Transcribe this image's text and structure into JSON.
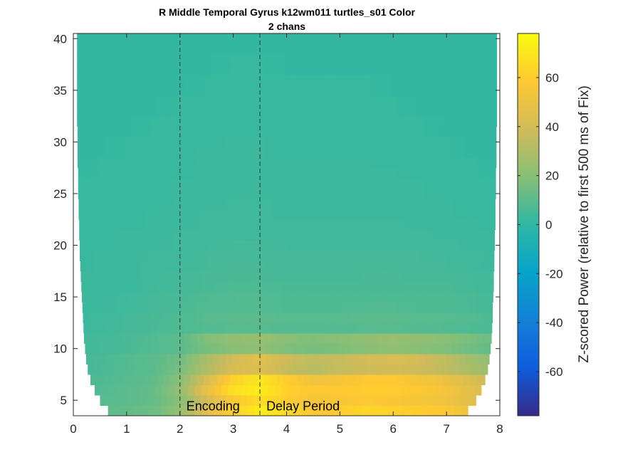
{
  "chart_data": {
    "type": "heatmap",
    "title": "R Middle Temporal Gyrus k12wm011 turtles_s01 Color",
    "subtitle": "2 chans",
    "xlabel": "",
    "ylabel": "",
    "xlim": [
      0,
      8
    ],
    "ylim": [
      3.5,
      40.5
    ],
    "x_ticks": [
      "0",
      "1",
      "2",
      "3",
      "4",
      "5",
      "6",
      "7",
      "8"
    ],
    "y_ticks": [
      "5",
      "10",
      "15",
      "20",
      "25",
      "30",
      "35",
      "40"
    ],
    "grid": false,
    "event_lines": [
      {
        "x": 2.0,
        "label": "Encoding"
      },
      {
        "x": 3.5,
        "label": "Delay Period"
      }
    ],
    "colorbar": {
      "label": "Z-scored Power (relative to first 500 ms of Fix)",
      "range": [
        -78,
        78
      ],
      "ticks": [
        "-60",
        "-40",
        "-20",
        "0",
        "20",
        "40",
        "60"
      ],
      "colormap": "parula"
    },
    "frequencies": [
      4,
      5,
      6,
      7,
      8,
      9,
      10,
      11,
      12,
      13,
      14,
      15,
      16,
      17,
      18,
      19,
      20,
      21,
      22,
      23,
      24,
      25,
      26,
      27,
      28,
      29,
      30,
      31,
      32,
      33,
      34,
      35,
      36,
      37,
      38,
      39,
      40
    ],
    "valid_time_ranges": [
      [
        0.65,
        7.4
      ],
      [
        0.5,
        7.55
      ],
      [
        0.4,
        7.65
      ],
      [
        0.32,
        7.72
      ],
      [
        0.27,
        7.77
      ],
      [
        0.24,
        7.8
      ],
      [
        0.22,
        7.82
      ],
      [
        0.2,
        7.84
      ],
      [
        0.19,
        7.85
      ],
      [
        0.18,
        7.86
      ],
      [
        0.17,
        7.86
      ],
      [
        0.16,
        7.87
      ],
      [
        0.15,
        7.88
      ],
      [
        0.14,
        7.88
      ],
      [
        0.13,
        7.89
      ],
      [
        0.12,
        7.89
      ],
      [
        0.12,
        7.9
      ],
      [
        0.11,
        7.9
      ],
      [
        0.11,
        7.91
      ],
      [
        0.1,
        7.91
      ],
      [
        0.1,
        7.91
      ],
      [
        0.09,
        7.92
      ],
      [
        0.09,
        7.92
      ],
      [
        0.09,
        7.92
      ],
      [
        0.08,
        7.93
      ],
      [
        0.08,
        7.93
      ],
      [
        0.08,
        7.93
      ],
      [
        0.08,
        7.93
      ],
      [
        0.07,
        7.94
      ],
      [
        0.07,
        7.94
      ],
      [
        0.07,
        7.94
      ],
      [
        0.07,
        7.94
      ],
      [
        0.07,
        7.94
      ],
      [
        0.07,
        7.94
      ],
      [
        0.07,
        7.94
      ],
      [
        0.07,
        7.94
      ],
      [
        0.07,
        7.94
      ]
    ],
    "time_points": [
      0,
      0.5,
      1,
      1.5,
      2,
      2.5,
      3,
      3.5,
      4,
      4.5,
      5,
      5.5,
      6,
      6.5,
      7,
      7.5,
      8
    ],
    "values": [
      [
        8,
        10,
        12,
        14,
        22,
        45,
        62,
        72,
        66,
        58,
        60,
        64,
        62,
        60,
        58,
        50,
        40
      ],
      [
        8,
        9,
        10,
        12,
        20,
        40,
        58,
        66,
        60,
        55,
        56,
        58,
        56,
        55,
        52,
        45,
        38
      ],
      [
        7,
        8,
        10,
        12,
        22,
        48,
        68,
        72,
        62,
        58,
        58,
        60,
        60,
        58,
        54,
        46,
        38
      ],
      [
        6,
        7,
        9,
        11,
        20,
        42,
        62,
        70,
        60,
        52,
        55,
        58,
        58,
        54,
        50,
        42,
        34
      ],
      [
        5,
        6,
        8,
        10,
        16,
        30,
        42,
        44,
        36,
        32,
        36,
        38,
        40,
        38,
        34,
        28,
        22
      ],
      [
        5,
        6,
        8,
        10,
        14,
        28,
        40,
        46,
        38,
        34,
        36,
        40,
        42,
        40,
        34,
        26,
        20
      ],
      [
        4,
        5,
        6,
        8,
        10,
        16,
        20,
        22,
        18,
        16,
        18,
        20,
        22,
        20,
        18,
        14,
        10
      ],
      [
        4,
        5,
        6,
        8,
        10,
        18,
        22,
        24,
        20,
        18,
        20,
        22,
        24,
        22,
        20,
        16,
        12
      ],
      [
        3,
        4,
        5,
        6,
        7,
        8,
        9,
        9,
        8,
        8,
        8,
        9,
        9,
        8,
        8,
        7,
        6
      ],
      [
        3,
        4,
        5,
        6,
        7,
        9,
        10,
        10,
        9,
        9,
        9,
        10,
        10,
        9,
        9,
        8,
        6
      ],
      [
        3,
        3,
        4,
        5,
        6,
        8,
        8,
        8,
        7,
        7,
        7,
        8,
        8,
        7,
        7,
        6,
        5
      ],
      [
        3,
        3,
        4,
        5,
        6,
        7,
        8,
        8,
        7,
        7,
        7,
        7,
        7,
        7,
        7,
        6,
        5
      ],
      [
        3,
        3,
        3,
        4,
        5,
        6,
        7,
        7,
        6,
        6,
        6,
        6,
        6,
        6,
        6,
        5,
        4
      ],
      [
        3,
        3,
        3,
        4,
        5,
        6,
        6,
        6,
        5,
        5,
        5,
        6,
        6,
        5,
        5,
        5,
        4
      ],
      [
        2,
        3,
        3,
        4,
        4,
        5,
        6,
        6,
        5,
        5,
        5,
        5,
        5,
        5,
        5,
        4,
        3
      ],
      [
        2,
        3,
        3,
        4,
        4,
        5,
        5,
        5,
        5,
        5,
        5,
        5,
        5,
        5,
        4,
        4,
        3
      ],
      [
        2,
        2,
        3,
        3,
        4,
        4,
        5,
        5,
        4,
        4,
        4,
        4,
        4,
        4,
        4,
        3,
        3
      ],
      [
        2,
        2,
        3,
        3,
        4,
        4,
        4,
        4,
        4,
        4,
        4,
        4,
        4,
        4,
        3,
        3,
        3
      ],
      [
        2,
        2,
        2,
        3,
        3,
        4,
        4,
        4,
        4,
        4,
        4,
        4,
        4,
        3,
        3,
        3,
        2
      ],
      [
        2,
        2,
        2,
        3,
        3,
        4,
        4,
        4,
        3,
        3,
        3,
        3,
        3,
        3,
        3,
        2,
        2
      ],
      [
        2,
        2,
        2,
        2,
        3,
        3,
        4,
        4,
        3,
        3,
        3,
        3,
        3,
        3,
        3,
        2,
        2
      ],
      [
        2,
        2,
        2,
        2,
        3,
        3,
        3,
        3,
        3,
        3,
        3,
        3,
        3,
        3,
        2,
        2,
        2
      ],
      [
        2,
        2,
        2,
        2,
        3,
        3,
        3,
        3,
        3,
        3,
        3,
        3,
        3,
        3,
        2,
        2,
        2
      ],
      [
        1,
        2,
        2,
        2,
        2,
        3,
        3,
        3,
        3,
        3,
        3,
        3,
        3,
        2,
        2,
        2,
        1
      ],
      [
        1,
        2,
        2,
        2,
        2,
        3,
        3,
        3,
        3,
        3,
        3,
        3,
        2,
        2,
        2,
        2,
        1
      ],
      [
        1,
        1,
        2,
        2,
        2,
        3,
        3,
        3,
        2,
        2,
        2,
        2,
        2,
        2,
        2,
        1,
        1
      ],
      [
        1,
        1,
        2,
        2,
        2,
        2,
        3,
        3,
        2,
        2,
        2,
        2,
        2,
        2,
        2,
        1,
        1
      ],
      [
        1,
        1,
        1,
        2,
        2,
        2,
        2,
        2,
        2,
        2,
        2,
        2,
        2,
        2,
        1,
        1,
        1
      ],
      [
        1,
        1,
        1,
        2,
        2,
        2,
        2,
        2,
        2,
        2,
        2,
        2,
        2,
        2,
        1,
        1,
        1
      ],
      [
        1,
        1,
        1,
        1,
        2,
        2,
        2,
        2,
        2,
        2,
        2,
        2,
        2,
        1,
        1,
        1,
        1
      ],
      [
        1,
        1,
        1,
        1,
        2,
        2,
        2,
        2,
        2,
        2,
        2,
        2,
        2,
        1,
        1,
        1,
        1
      ],
      [
        1,
        1,
        1,
        1,
        1,
        2,
        2,
        2,
        2,
        2,
        2,
        2,
        1,
        1,
        1,
        1,
        1
      ],
      [
        1,
        1,
        1,
        1,
        1,
        2,
        2,
        2,
        2,
        2,
        2,
        2,
        1,
        1,
        1,
        1,
        1
      ],
      [
        1,
        1,
        1,
        1,
        1,
        1,
        2,
        2,
        1,
        1,
        1,
        1,
        1,
        1,
        1,
        1,
        1
      ],
      [
        1,
        1,
        1,
        1,
        1,
        1,
        2,
        2,
        1,
        1,
        1,
        1,
        1,
        1,
        1,
        1,
        1
      ],
      [
        1,
        1,
        1,
        1,
        1,
        1,
        1,
        1,
        1,
        1,
        1,
        1,
        1,
        1,
        1,
        1,
        1
      ],
      [
        1,
        1,
        1,
        1,
        1,
        1,
        1,
        1,
        1,
        1,
        1,
        1,
        1,
        1,
        1,
        1,
        1
      ]
    ]
  }
}
